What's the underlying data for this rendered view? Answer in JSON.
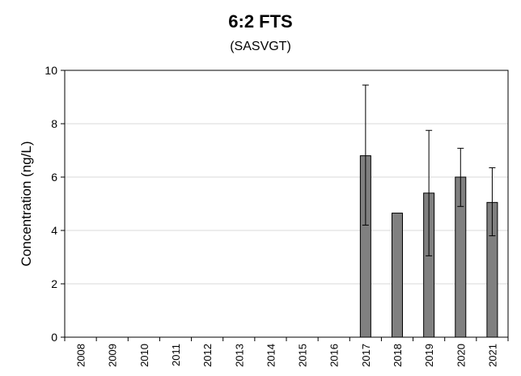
{
  "chart_data": {
    "type": "bar",
    "title": "6:2 FTS",
    "subtitle": "(SASVGT)",
    "xlabel": "",
    "ylabel": "Concentration (ng/L)",
    "ylim": [
      0,
      10
    ],
    "yticks": [
      0,
      2,
      4,
      6,
      8,
      10
    ],
    "grid": true,
    "categories": [
      "2008",
      "2009",
      "2010",
      "2011",
      "2012",
      "2013",
      "2014",
      "2015",
      "2016",
      "2017",
      "2018",
      "2019",
      "2020",
      "2021"
    ],
    "values": [
      null,
      null,
      null,
      null,
      null,
      null,
      null,
      null,
      null,
      6.8,
      4.65,
      5.4,
      6.0,
      5.05
    ],
    "error_low": [
      null,
      null,
      null,
      null,
      null,
      null,
      null,
      null,
      null,
      4.2,
      null,
      3.05,
      4.9,
      3.8
    ],
    "error_high": [
      null,
      null,
      null,
      null,
      null,
      null,
      null,
      null,
      null,
      9.45,
      null,
      7.75,
      7.08,
      6.35
    ],
    "bar_color": "#808080"
  }
}
